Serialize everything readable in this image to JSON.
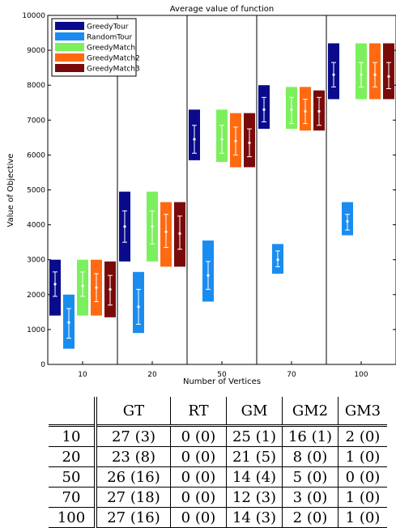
{
  "chart_data": {
    "type": "bar",
    "title": "Average value of function",
    "xlabel": "Number of Vertices",
    "ylabel": "Value of Objective",
    "ylim": [
      0,
      10000
    ],
    "yticks": [
      0,
      1000,
      2000,
      3000,
      4000,
      5000,
      6000,
      7000,
      8000,
      9000,
      10000
    ],
    "categories": [
      "10",
      "20",
      "50",
      "70",
      "100"
    ],
    "legend_position": "top-left",
    "grid": false,
    "series": [
      {
        "name": "GreedyTour",
        "color": "#0a0a8c",
        "ranges": [
          [
            1400,
            3000
          ],
          [
            2950,
            4950
          ],
          [
            5850,
            7300
          ],
          [
            6750,
            8000
          ],
          [
            7600,
            9200
          ]
        ],
        "means": [
          2300,
          3950,
          6450,
          7300,
          8300
        ],
        "std": [
          [
            1950,
            2650
          ],
          [
            3500,
            4400
          ],
          [
            6050,
            6850
          ],
          [
            6950,
            7650
          ],
          [
            7950,
            8650
          ]
        ]
      },
      {
        "name": "RandomTour",
        "color": "#1a8cf0",
        "ranges": [
          [
            450,
            2000
          ],
          [
            900,
            2650
          ],
          [
            1800,
            3550
          ],
          [
            2600,
            3450
          ],
          [
            3700,
            4650
          ]
        ],
        "means": [
          1200,
          1650,
          2550,
          3000,
          4100
        ],
        "std": [
          [
            750,
            1600
          ],
          [
            1150,
            2150
          ],
          [
            2150,
            2950
          ],
          [
            2800,
            3250
          ],
          [
            3850,
            4300
          ]
        ]
      },
      {
        "name": "GreedyMatch",
        "color": "#7cf05c",
        "ranges": [
          [
            1400,
            3000
          ],
          [
            2950,
            4950
          ],
          [
            5800,
            7300
          ],
          [
            6750,
            7950
          ],
          [
            7600,
            9200
          ]
        ],
        "means": [
          2250,
          3950,
          6450,
          7300,
          8300
        ],
        "std": [
          [
            1950,
            2650
          ],
          [
            3450,
            4400
          ],
          [
            6050,
            6850
          ],
          [
            6900,
            7650
          ],
          [
            7950,
            8650
          ]
        ]
      },
      {
        "name": "GreedyMatch2",
        "color": "#ff6a10",
        "ranges": [
          [
            1400,
            3000
          ],
          [
            2800,
            4650
          ],
          [
            5650,
            7200
          ],
          [
            6700,
            7950
          ],
          [
            7600,
            9200
          ]
        ],
        "means": [
          2200,
          3800,
          6400,
          7250,
          8300
        ],
        "std": [
          [
            1800,
            2600
          ],
          [
            3350,
            4300
          ],
          [
            6000,
            6800
          ],
          [
            6900,
            7600
          ],
          [
            7950,
            8650
          ]
        ]
      },
      {
        "name": "GreedyMatch3",
        "color": "#7a0a0a",
        "ranges": [
          [
            1350,
            2950
          ],
          [
            2800,
            4650
          ],
          [
            5650,
            7200
          ],
          [
            6700,
            7850
          ],
          [
            7600,
            9200
          ]
        ],
        "means": [
          2150,
          3750,
          6350,
          7250,
          8250
        ],
        "std": [
          [
            1700,
            2550
          ],
          [
            3300,
            4250
          ],
          [
            5950,
            6750
          ],
          [
            6850,
            7650
          ],
          [
            7900,
            8650
          ]
        ]
      }
    ]
  },
  "table": {
    "columns": [
      "",
      "GT",
      "RT",
      "GM",
      "GM2",
      "GM3"
    ],
    "rows": [
      [
        "10",
        "27 (3)",
        "0 (0)",
        "25 (1)",
        "16 (1)",
        "2 (0)"
      ],
      [
        "20",
        "23 (8)",
        "0 (0)",
        "21 (5)",
        "8 (0)",
        "1 (0)"
      ],
      [
        "50",
        "26 (16)",
        "0 (0)",
        "14 (4)",
        "5 (0)",
        "0 (0)"
      ],
      [
        "70",
        "27 (18)",
        "0 (0)",
        "12 (3)",
        "3 (0)",
        "1 (0)"
      ],
      [
        "100",
        "27 (16)",
        "0 (0)",
        "14 (3)",
        "2 (0)",
        "1 (0)"
      ]
    ]
  }
}
